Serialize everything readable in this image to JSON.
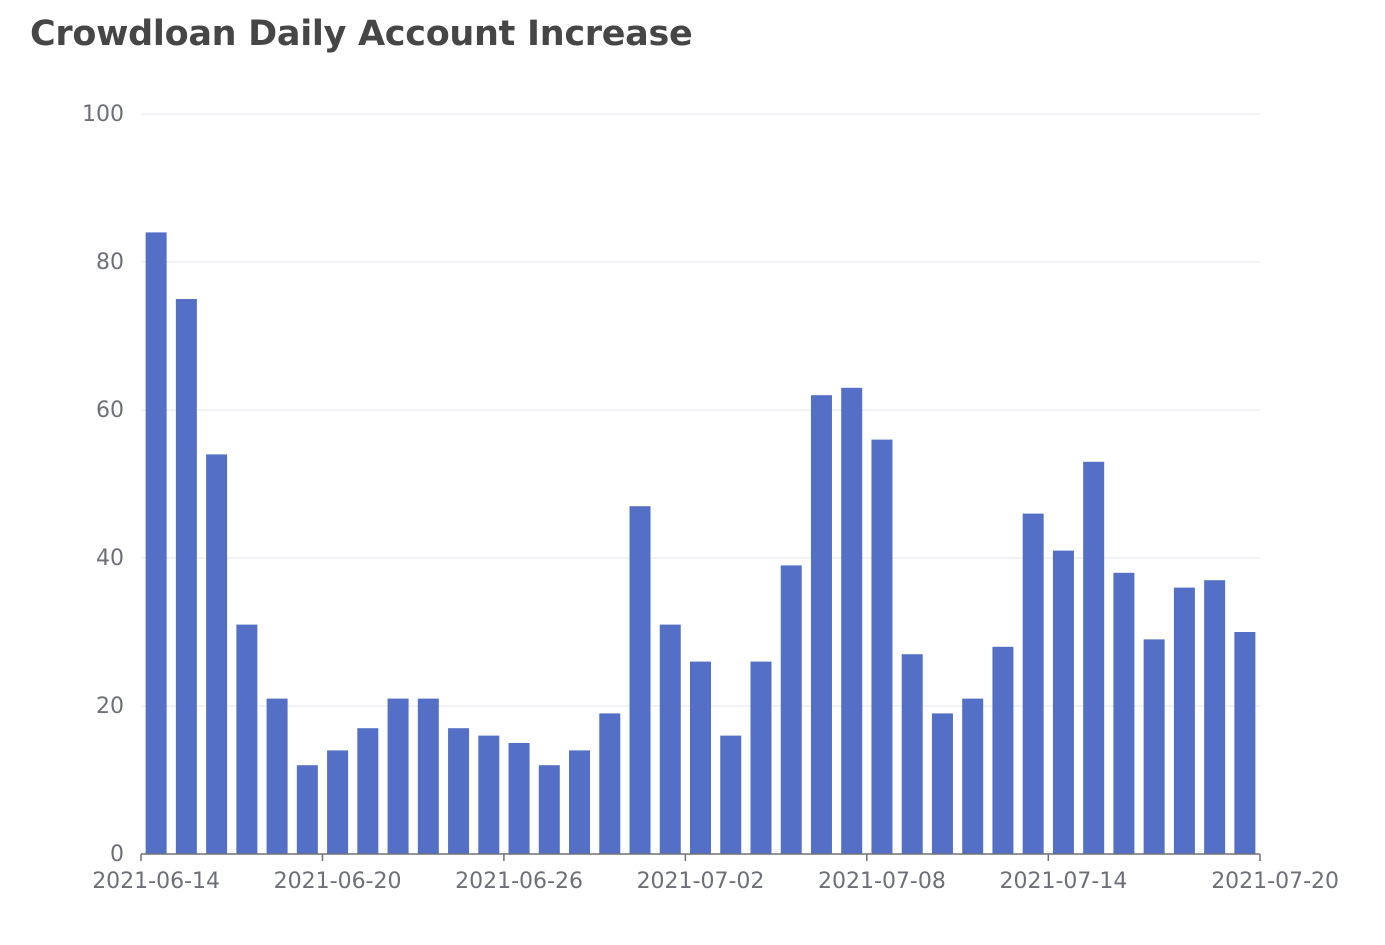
{
  "chart_data": {
    "type": "bar",
    "title": "Crowdloan Daily Account Increase",
    "xlabel": "",
    "ylabel": "",
    "ylim": [
      0,
      100
    ],
    "yticks": [
      "0",
      "20",
      "40",
      "60",
      "80",
      "100"
    ],
    "xticks": [
      "2021-06-14",
      "2021-06-20",
      "2021-06-26",
      "2021-07-02",
      "2021-07-08",
      "2021-07-14",
      "2021-07-20"
    ],
    "grid": true,
    "bar_color": "#5470c6",
    "categories": [
      "2021-06-14",
      "2021-06-15",
      "2021-06-16",
      "2021-06-17",
      "2021-06-18",
      "2021-06-19",
      "2021-06-20",
      "2021-06-21",
      "2021-06-22",
      "2021-06-23",
      "2021-06-24",
      "2021-06-25",
      "2021-06-26",
      "2021-06-27",
      "2021-06-28",
      "2021-06-29",
      "2021-06-30",
      "2021-07-01",
      "2021-07-02",
      "2021-07-03",
      "2021-07-04",
      "2021-07-05",
      "2021-07-06",
      "2021-07-07",
      "2021-07-08",
      "2021-07-09",
      "2021-07-10",
      "2021-07-11",
      "2021-07-12",
      "2021-07-13",
      "2021-07-14",
      "2021-07-15",
      "2021-07-16",
      "2021-07-17",
      "2021-07-18",
      "2021-07-19",
      "2021-07-20"
    ],
    "values": [
      84,
      75,
      54,
      31,
      21,
      12,
      14,
      17,
      21,
      21,
      17,
      16,
      15,
      12,
      14,
      19,
      47,
      31,
      26,
      16,
      26,
      39,
      62,
      63,
      56,
      27,
      19,
      21,
      28,
      46,
      41,
      53,
      38,
      29,
      36,
      37,
      30
    ]
  }
}
